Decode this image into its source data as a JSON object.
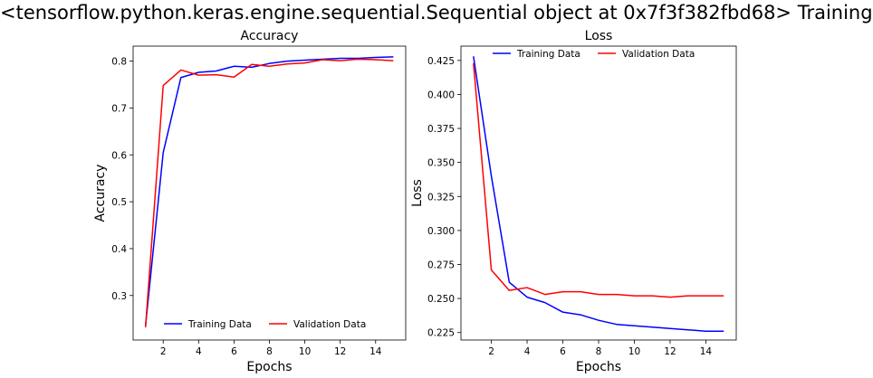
{
  "figure": {
    "suptitle": "<tensorflow.python.keras.engine.sequential.Sequential object at 0x7f3f382fbd68> Training"
  },
  "chart_data": [
    {
      "type": "line",
      "title": "Accuracy",
      "xlabel": "Epochs",
      "ylabel": "Accuracy",
      "xlim": [
        0.3,
        15.7
      ],
      "ylim": [
        0.205,
        0.832
      ],
      "xticks": [
        2,
        4,
        6,
        8,
        10,
        12,
        14
      ],
      "yticks": [
        0.3,
        0.4,
        0.5,
        0.6,
        0.7,
        0.8
      ],
      "ytick_decimals": 1,
      "grid": false,
      "legend": {
        "placement": "bottom-center",
        "columns": 2
      },
      "x": [
        1,
        2,
        3,
        4,
        5,
        6,
        7,
        8,
        9,
        10,
        11,
        12,
        13,
        14,
        15
      ],
      "series": [
        {
          "name": "Training Data",
          "color": "#0000ff",
          "values": [
            0.235,
            0.605,
            0.765,
            0.776,
            0.779,
            0.789,
            0.787,
            0.795,
            0.8,
            0.802,
            0.804,
            0.806,
            0.806,
            0.808,
            0.809
          ]
        },
        {
          "name": "Validation Data",
          "color": "#ff0000",
          "values": [
            0.232,
            0.748,
            0.781,
            0.77,
            0.771,
            0.766,
            0.793,
            0.789,
            0.794,
            0.796,
            0.803,
            0.801,
            0.804,
            0.803,
            0.801
          ]
        }
      ]
    },
    {
      "type": "line",
      "title": "Loss",
      "xlabel": "Epochs",
      "ylabel": "Loss",
      "xlim": [
        0.3,
        15.7
      ],
      "ylim": [
        0.2195,
        0.4355
      ],
      "xticks": [
        2,
        4,
        6,
        8,
        10,
        12,
        14
      ],
      "yticks": [
        0.225,
        0.25,
        0.275,
        0.3,
        0.325,
        0.35,
        0.375,
        0.4,
        0.425
      ],
      "ytick_decimals": 3,
      "grid": false,
      "legend": {
        "placement": "top-center",
        "columns": 2
      },
      "x": [
        1,
        2,
        3,
        4,
        5,
        6,
        7,
        8,
        9,
        10,
        11,
        12,
        13,
        14,
        15
      ],
      "series": [
        {
          "name": "Training Data",
          "color": "#0000ff",
          "values": [
            0.428,
            0.34,
            0.262,
            0.251,
            0.247,
            0.24,
            0.238,
            0.234,
            0.231,
            0.23,
            0.229,
            0.228,
            0.227,
            0.226,
            0.226
          ]
        },
        {
          "name": "Validation Data",
          "color": "#ff0000",
          "values": [
            0.423,
            0.271,
            0.256,
            0.258,
            0.253,
            0.255,
            0.255,
            0.253,
            0.253,
            0.252,
            0.252,
            0.251,
            0.252,
            0.252,
            0.252
          ]
        }
      ]
    }
  ]
}
